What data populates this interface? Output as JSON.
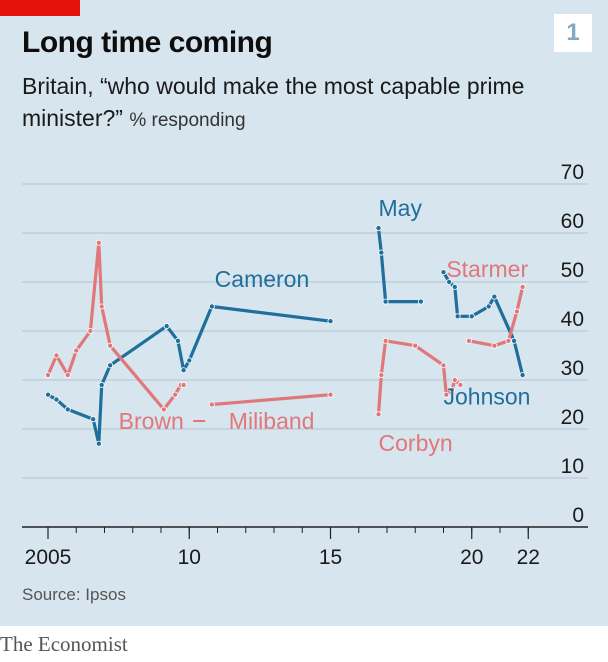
{
  "header": {
    "title": "Long time coming",
    "subtitle": "Britain, “who would make the most capable prime minister?”",
    "unit": "% responding",
    "chart_number": "1"
  },
  "footer": {
    "source": "Source: Ipsos",
    "brand": "The Economist"
  },
  "colors": {
    "background": "#d7e5ee",
    "conservative": "#1f6e9c",
    "labour": "#e0787b",
    "accent_red": "#e3120b"
  },
  "chart_data": {
    "type": "line",
    "title": "Long time coming",
    "xlabel": "",
    "ylabel": "% responding",
    "xlim": [
      2005,
      2023
    ],
    "ylim": [
      0,
      70
    ],
    "y_ticks": [
      "0",
      "10",
      "20",
      "30",
      "40",
      "50",
      "60",
      "70"
    ],
    "x_ticks": [
      {
        "x": 2005,
        "label": "2005"
      },
      {
        "x": 2010,
        "label": "10"
      },
      {
        "x": 2015,
        "label": "15"
      },
      {
        "x": 2020,
        "label": "20"
      },
      {
        "x": 2022,
        "label": "22"
      }
    ],
    "grid": true,
    "series": [
      {
        "name": "Cameron",
        "party": "conservative",
        "points": [
          [
            2005.0,
            27
          ],
          [
            2005.3,
            26
          ],
          [
            2005.7,
            24
          ],
          [
            2006.6,
            22
          ],
          [
            2006.8,
            17
          ],
          [
            2006.9,
            29
          ],
          [
            2007.2,
            33
          ],
          [
            2009.2,
            41
          ],
          [
            2009.6,
            38
          ],
          [
            2009.8,
            32
          ],
          [
            2010.0,
            34
          ],
          [
            2010.8,
            45
          ],
          [
            2015.0,
            42
          ]
        ]
      },
      {
        "name": "Brown",
        "party": "labour",
        "points": [
          [
            2005.0,
            31
          ],
          [
            2005.3,
            35
          ],
          [
            2005.7,
            31
          ],
          [
            2006.0,
            36
          ],
          [
            2006.5,
            40
          ],
          [
            2006.8,
            58
          ],
          [
            2006.9,
            45
          ],
          [
            2007.2,
            37
          ],
          [
            2009.1,
            24
          ],
          [
            2009.5,
            27
          ],
          [
            2009.7,
            29
          ],
          [
            2009.8,
            29
          ]
        ]
      },
      {
        "name": "Miliband",
        "party": "labour",
        "points": [
          [
            2010.8,
            25
          ],
          [
            2015.0,
            27
          ]
        ]
      },
      {
        "name": "May",
        "party": "conservative",
        "points": [
          [
            2016.7,
            61
          ],
          [
            2016.8,
            56
          ],
          [
            2016.95,
            46
          ],
          [
            2018.2,
            46
          ]
        ]
      },
      {
        "name": "Corbyn",
        "party": "labour",
        "points": [
          [
            2016.7,
            23
          ],
          [
            2016.8,
            31
          ],
          [
            2016.95,
            38
          ],
          [
            2018.0,
            37
          ],
          [
            2019.0,
            33
          ],
          [
            2019.1,
            27
          ],
          [
            2019.3,
            28
          ],
          [
            2019.4,
            30
          ],
          [
            2019.6,
            29
          ]
        ]
      },
      {
        "name": "Johnson",
        "party": "conservative",
        "points": [
          [
            2019.0,
            52
          ],
          [
            2019.2,
            50
          ],
          [
            2019.4,
            49
          ],
          [
            2019.5,
            43
          ],
          [
            2020.0,
            43
          ],
          [
            2020.6,
            45
          ],
          [
            2020.8,
            47
          ],
          [
            2021.5,
            38
          ],
          [
            2021.8,
            31
          ]
        ]
      },
      {
        "name": "Starmer",
        "party": "labour",
        "points": [
          [
            2019.9,
            38
          ],
          [
            2020.8,
            37
          ],
          [
            2021.3,
            38
          ],
          [
            2021.6,
            44
          ],
          [
            2021.8,
            49
          ]
        ]
      }
    ],
    "labels": [
      {
        "text": "Cameron",
        "party": "conservative",
        "x": 2010.9,
        "y": 49
      },
      {
        "text": "Brown",
        "party": "labour",
        "x": 2007.5,
        "y": 20
      },
      {
        "text": "Miliband",
        "party": "labour",
        "x": 2011.4,
        "y": 20
      },
      {
        "text": "May",
        "party": "conservative",
        "x": 2016.7,
        "y": 63.5
      },
      {
        "text": "Corbyn",
        "party": "labour",
        "x": 2016.7,
        "y": 15.5
      },
      {
        "text": "Johnson",
        "party": "conservative",
        "x": 2019.0,
        "y": 25
      },
      {
        "text": "Starmer",
        "party": "labour",
        "x": 2019.1,
        "y": 51
      }
    ],
    "separators": [
      {
        "x": 2010.35,
        "y": 20
      }
    ]
  }
}
